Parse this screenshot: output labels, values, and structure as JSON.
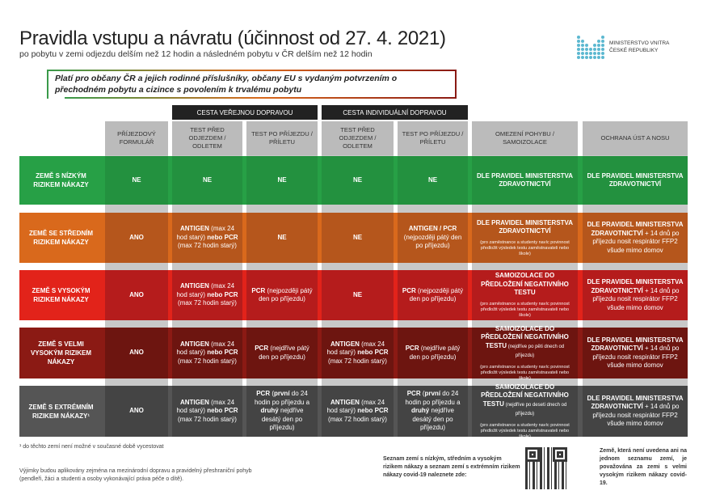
{
  "header": {
    "title": "Pravidla vstupu a návratu (účinnost od 27. 4. 2021)",
    "subtitle": "po pobytu v zemi odjezdu delším než 12 hodin a následném pobytu v ČR delším než 12 hodin",
    "logo_line1": "MINISTERSTVO VNITRA",
    "logo_line2": "ČESKÉ REPUBLIKY",
    "note": "Platí pro občany ČR a jejich rodinné příslušníky, občany EU s vydaným potvrzením o přechodném pobytu a cizince s povolením k trvalému pobytu"
  },
  "groups": [
    "CESTA VEŘEJNOU DOPRAVOU",
    "CESTA INDIVIDUÁLNÍ DOPRAVOU"
  ],
  "columns": [
    "PŘÍJEZDOVÝ FORMULÁŘ",
    "TEST PŘED ODJEZDEM / ODLETEM",
    "TEST PO PŘÍJEZDU / PŘÍLETU",
    "TEST PŘED ODJEZDEM / ODLETEM",
    "TEST PO PŘÍJEZDU / PŘÍLETU",
    "OMEZENÍ POHYBU / SAMOIZOLACE",
    "OCHRANA ÚST A NOSU"
  ],
  "colors": {
    "green": "#27a046",
    "orange": "#d9691c",
    "red": "#e2231a",
    "darkred": "#8b1a14",
    "gray": "#555555"
  },
  "rows": [
    {
      "label": "ZEMĚ S NÍZKÝM RIZIKEM NÁKAZY",
      "color": "#27a046",
      "cell": "#23913f",
      "cells": [
        {
          "parts": [
            {
              "t": "NE",
              "b": true
            }
          ]
        },
        {
          "parts": [
            {
              "t": "NE",
              "b": true
            }
          ]
        },
        {
          "parts": [
            {
              "t": "NE",
              "b": true
            }
          ]
        },
        {
          "parts": [
            {
              "t": "NE",
              "b": true
            }
          ]
        },
        {
          "parts": [
            {
              "t": "NE",
              "b": true
            }
          ]
        },
        {
          "parts": [
            {
              "t": "DLE PRAVIDEL MINISTERSTVA ZDRAVOTNICTVÍ",
              "b": true
            }
          ]
        },
        {
          "parts": [
            {
              "t": "DLE PRAVIDEL MINISTERSTVA ZDRAVOTNICTVÍ",
              "b": true
            }
          ]
        }
      ]
    },
    {
      "label": "ZEMĚ SE STŘEDNÍM RIZIKEM NÁKAZY",
      "color": "#d9691c",
      "cell": "#b5561c",
      "cells": [
        {
          "parts": [
            {
              "t": "ANO",
              "b": true
            }
          ]
        },
        {
          "parts": [
            {
              "t": "ANTIGEN",
              "b": true
            },
            {
              "t": " (max 24 hod starý) "
            },
            {
              "t": "nebo PCR",
              "b": true
            },
            {
              "t": " (max 72 hodin starý)"
            }
          ]
        },
        {
          "parts": [
            {
              "t": "NE",
              "b": true
            }
          ]
        },
        {
          "parts": [
            {
              "t": "NE",
              "b": true
            }
          ]
        },
        {
          "parts": [
            {
              "t": "ANTIGEN / PCR",
              "b": true
            },
            {
              "t": " (nejpozději pátý den po příjezdu)"
            }
          ]
        },
        {
          "parts": [
            {
              "t": "DLE PRAVIDEL MINISTERSTVA ZDRAVOTNICTVÍ",
              "b": true
            }
          ],
          "note": "(pro zaměstnance a studenty navíc povinnost předložit výsledek testu zaměstnavateli nebo škole)"
        },
        {
          "parts": [
            {
              "t": "DLE PRAVIDEL MINISTERSTVA ZDRAVOTNICTVÍ",
              "b": true
            },
            {
              "t": " + 14 dnů po příjezdu nosit respirátor FFP2 všude mimo domov"
            }
          ]
        }
      ]
    },
    {
      "label": "ZEMĚ S VYSOKÝM RIZIKEM NÁKAZY",
      "color": "#e2231a",
      "cell": "#b51c1c",
      "cells": [
        {
          "parts": [
            {
              "t": "ANO",
              "b": true
            }
          ]
        },
        {
          "parts": [
            {
              "t": "ANTIGEN",
              "b": true
            },
            {
              "t": " (max 24 hod starý) "
            },
            {
              "t": "nebo PCR",
              "b": true
            },
            {
              "t": " (max 72 hodin starý)"
            }
          ]
        },
        {
          "parts": [
            {
              "t": "PCR",
              "b": true
            },
            {
              "t": " (nejpozději pátý den po příjezdu)"
            }
          ]
        },
        {
          "parts": [
            {
              "t": "NE",
              "b": true
            }
          ]
        },
        {
          "parts": [
            {
              "t": "PCR",
              "b": true
            },
            {
              "t": " (nejpozději pátý den po příjezdu)"
            }
          ]
        },
        {
          "parts": [
            {
              "t": "SAMOIZOLACE DO PŘEDLOŽENÍ NEGATIVNÍHO TESTU",
              "b": true
            }
          ],
          "note": "(pro zaměstnance a studenty navíc povinnost předložit výsledek testu zaměstnavateli nebo škole)"
        },
        {
          "parts": [
            {
              "t": "DLE PRAVIDEL MINISTERSTVA ZDRAVOTNICTVÍ",
              "b": true
            },
            {
              "t": " + 14 dnů po příjezdu nosit respirátor FFP2 všude mimo domov"
            }
          ]
        }
      ]
    },
    {
      "label": "ZEMĚ S VELMI VYSOKÝM RIZIKEM NÁKAZY",
      "color": "#8b1a14",
      "cell": "#6d1510",
      "cells": [
        {
          "parts": [
            {
              "t": "ANO",
              "b": true
            }
          ]
        },
        {
          "parts": [
            {
              "t": "ANTIGEN",
              "b": true
            },
            {
              "t": " (max 24 hod starý) "
            },
            {
              "t": "nebo PCR",
              "b": true
            },
            {
              "t": " (max 72 hodin starý)"
            }
          ]
        },
        {
          "parts": [
            {
              "t": "PCR",
              "b": true
            },
            {
              "t": " (nejdříve pátý den po příjezdu)"
            }
          ]
        },
        {
          "parts": [
            {
              "t": "ANTIGEN",
              "b": true
            },
            {
              "t": " (max 24 hod starý) "
            },
            {
              "t": "nebo PCR",
              "b": true
            },
            {
              "t": " (max 72 hodin starý)"
            }
          ]
        },
        {
          "parts": [
            {
              "t": "PCR",
              "b": true
            },
            {
              "t": " (nejdříve pátý den po příjezdu)"
            }
          ]
        },
        {
          "parts": [
            {
              "t": "SAMOIZOLACE DO PŘEDLOŽENÍ NEGATIVNÍHO TESTU",
              "b": true
            },
            {
              "t": " (nejdříve po pěti dnech od příjezdu)",
              "s": true
            }
          ],
          "note": "(pro zaměstnance a studenty navíc povinnost předložit výsledek testu zaměstnavateli nebo škole)"
        },
        {
          "parts": [
            {
              "t": "DLE PRAVIDEL MINISTERSTVA ZDRAVOTNICTVÍ",
              "b": true
            },
            {
              "t": " + 14 dnů po příjezdu nosit respirátor FFP2 všude mimo domov"
            }
          ]
        }
      ]
    },
    {
      "label": "ZEMĚ S EXTRÉMNÍM RIZIKEM NÁKAZY¹",
      "color": "#555555",
      "cell": "#444444",
      "cells": [
        {
          "parts": [
            {
              "t": "ANO",
              "b": true
            }
          ]
        },
        {
          "parts": [
            {
              "t": "ANTIGEN",
              "b": true
            },
            {
              "t": " (max 24 hod starý) "
            },
            {
              "t": "nebo PCR",
              "b": true
            },
            {
              "t": " (max 72 hodin starý)"
            }
          ]
        },
        {
          "parts": [
            {
              "t": "PCR",
              "b": true
            },
            {
              "t": " ("
            },
            {
              "t": "první",
              "b": true
            },
            {
              "t": " do 24 hodin po příjezdu a "
            },
            {
              "t": "druhý",
              "b": true
            },
            {
              "t": " nejdříve desátý den po příjezdu)"
            }
          ]
        },
        {
          "parts": [
            {
              "t": "ANTIGEN",
              "b": true
            },
            {
              "t": " (max 24 hod starý) "
            },
            {
              "t": "nebo PCR",
              "b": true
            },
            {
              "t": " (max 72 hodin starý)"
            }
          ]
        },
        {
          "parts": [
            {
              "t": "PCR",
              "b": true
            },
            {
              "t": " ("
            },
            {
              "t": "první",
              "b": true
            },
            {
              "t": " do 24 hodin po příjezdu a "
            },
            {
              "t": "druhý",
              "b": true
            },
            {
              "t": " nejdříve desátý den po příjezdu)"
            }
          ]
        },
        {
          "parts": [
            {
              "t": "SAMOIZOLACE DO PŘEDLOŽENÍ NEGATIVNÍHO TESTU",
              "b": true
            },
            {
              "t": " (nejdříve po deseti dnech od příjezdu)",
              "s": true
            }
          ],
          "note": "(pro zaměstnance a studenty navíc povinnost předložit výsledek testu zaměstnavateli nebo škole)"
        },
        {
          "parts": [
            {
              "t": "DLE PRAVIDEL MINISTERSTVA ZDRAVOTNICTVÍ",
              "b": true
            },
            {
              "t": " + 14 dnů po příjezdu nosit respirátor FFP2 všude mimo domov"
            }
          ]
        }
      ]
    }
  ],
  "footer": {
    "footnote": "¹ do těchto zemí není možné v současné době vycestovat",
    "exceptions": "Výjimky budou aplikovány zejména na mezinárodní dopravu a pravidelný přeshraniční pohyb (pendleři, žáci a studenti a osoby vykonávající práva péče o dítě).",
    "list_info": "Seznam zemí s nízkým, středním a vysokým rizikem nákazy a seznam zemí s extrémním rizikem nákazy covid-19 naleznete zde:",
    "unlisted": "Země, která není uvedena ani na jednom seznamu zemí, je považována za zemi s velmi vysokým rizikem nákazy covid-19."
  }
}
